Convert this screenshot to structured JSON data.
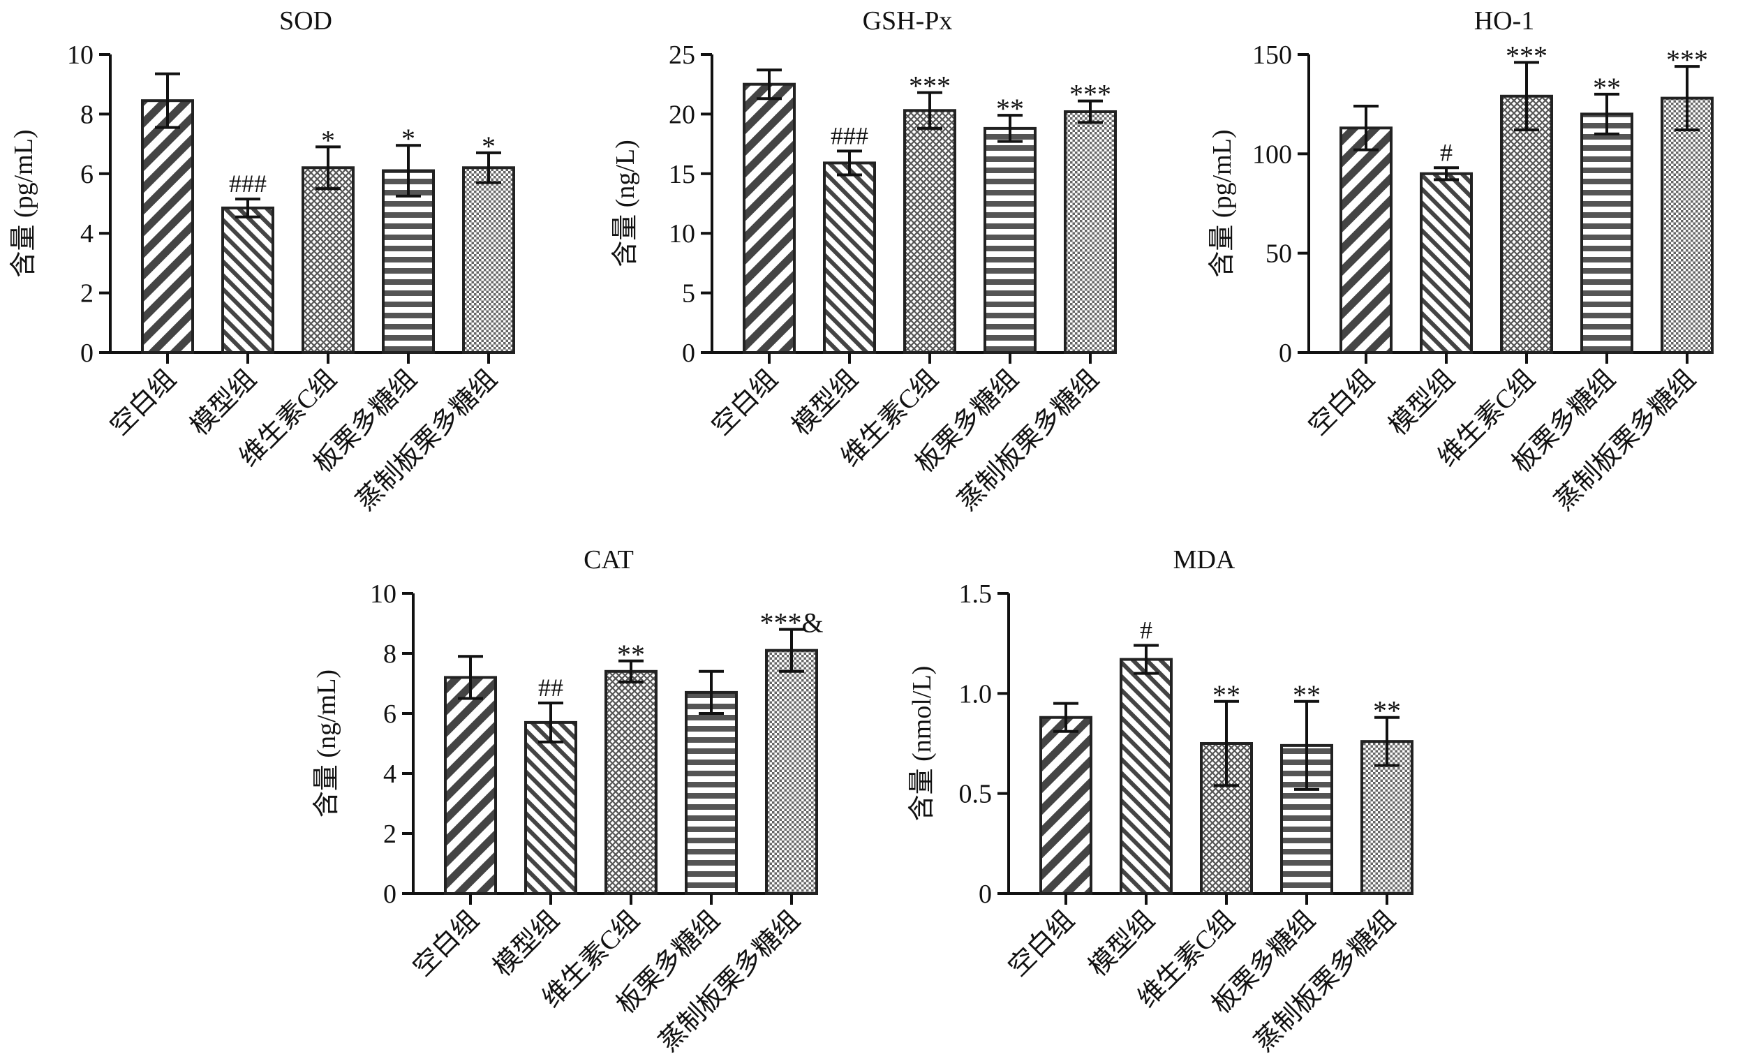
{
  "colors": {
    "ink": "#111111",
    "bar_fill": "#ffffff",
    "pattern": "#444444"
  },
  "pattern_legend": {
    "空白组": "wide-diagonal-stripes",
    "模型组": "narrow-diagonal-stripes",
    "维生素C组": "fine-crosshatch",
    "板栗多糖组": "horizontal-stripes",
    "蒸制板栗多糖组": "fine-dots"
  },
  "chart_data": [
    {
      "type": "bar",
      "title": "SOD",
      "ylabel": "含量 (pg/mL)",
      "ylim": [
        0,
        10
      ],
      "yticks": [
        "0",
        "2",
        "4",
        "6",
        "8",
        "10"
      ],
      "categories": [
        "空白组",
        "模型组",
        "维生素C组",
        "板栗多糖组",
        "蒸制板栗多糖组"
      ],
      "values": [
        8.45,
        4.85,
        6.2,
        6.1,
        6.2
      ],
      "errors": [
        0.9,
        0.3,
        0.7,
        0.85,
        0.5
      ],
      "annotations": [
        "",
        "###",
        "*",
        "*",
        "*"
      ]
    },
    {
      "type": "bar",
      "title": "GSH-Px",
      "ylabel": "含量 (ng/L)",
      "ylim": [
        0,
        25
      ],
      "yticks": [
        "0",
        "5",
        "10",
        "15",
        "20",
        "25"
      ],
      "categories": [
        "空白组",
        "模型组",
        "维生素C组",
        "板栗多糖组",
        "蒸制板栗多糖组"
      ],
      "values": [
        22.5,
        15.9,
        20.3,
        18.8,
        20.2
      ],
      "errors": [
        1.2,
        1.0,
        1.5,
        1.1,
        0.9
      ],
      "annotations": [
        "",
        "###",
        "***",
        "**",
        "***"
      ]
    },
    {
      "type": "bar",
      "title": "HO-1",
      "ylabel": "含量 (pg/mL)",
      "ylim": [
        0,
        150
      ],
      "yticks": [
        "0",
        "50",
        "100",
        "150"
      ],
      "categories": [
        "空白组",
        "模型组",
        "维生素C组",
        "板栗多糖组",
        "蒸制板栗多糖组"
      ],
      "values": [
        113,
        90,
        129,
        120,
        128
      ],
      "errors": [
        11,
        3,
        17,
        10,
        16
      ],
      "annotations": [
        "",
        "#",
        "***",
        "**",
        "***"
      ]
    },
    {
      "type": "bar",
      "title": "CAT",
      "ylabel": "含量 (ng/mL)",
      "ylim": [
        0,
        10
      ],
      "yticks": [
        "0",
        "2",
        "4",
        "6",
        "8",
        "10"
      ],
      "categories": [
        "空白组",
        "模型组",
        "维生素C组",
        "板栗多糖组",
        "蒸制板栗多糖组"
      ],
      "values": [
        7.2,
        5.7,
        7.4,
        6.7,
        8.1
      ],
      "errors": [
        0.7,
        0.65,
        0.35,
        0.7,
        0.7
      ],
      "annotations": [
        "",
        "##",
        "**",
        "",
        "***&"
      ]
    },
    {
      "type": "bar",
      "title": "MDA",
      "ylabel": "含量 (nmol/L)",
      "ylim": [
        0,
        1.5
      ],
      "yticks": [
        "0",
        "0.5",
        "1.0",
        "1.5"
      ],
      "categories": [
        "空白组",
        "模型组",
        "维生素C组",
        "板栗多糖组",
        "蒸制板栗多糖组"
      ],
      "values": [
        0.88,
        1.17,
        0.75,
        0.74,
        0.76
      ],
      "errors": [
        0.07,
        0.07,
        0.21,
        0.22,
        0.12
      ],
      "annotations": [
        "",
        "#",
        "**",
        "**",
        "**"
      ]
    }
  ]
}
